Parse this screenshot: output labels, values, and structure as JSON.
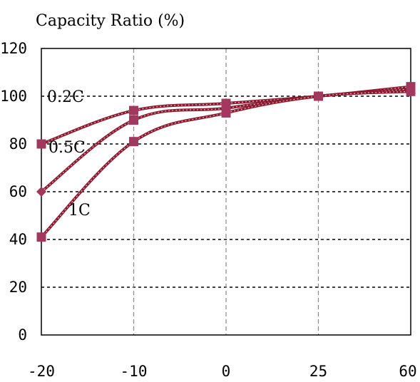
{
  "chart_data": {
    "type": "line",
    "title": "",
    "xlabel": "",
    "ylabel": "Capacity Ratio (%)",
    "ylim": [
      0,
      120
    ],
    "yticks": [
      0,
      20,
      40,
      60,
      80,
      100,
      120
    ],
    "categories": [
      "-20",
      "-10",
      "0",
      "25",
      "60"
    ],
    "grid": true,
    "legend": "none",
    "line_color": "#8b1a2e",
    "marker_color": "#a3385f",
    "series": [
      {
        "name": "0.2C",
        "values": [
          80,
          94,
          97,
          100,
          104
        ]
      },
      {
        "name": "0.5C",
        "values": [
          60,
          90,
          95,
          100,
          103
        ]
      },
      {
        "name": "1C",
        "values": [
          41,
          81,
          93,
          100,
          102
        ]
      }
    ]
  }
}
